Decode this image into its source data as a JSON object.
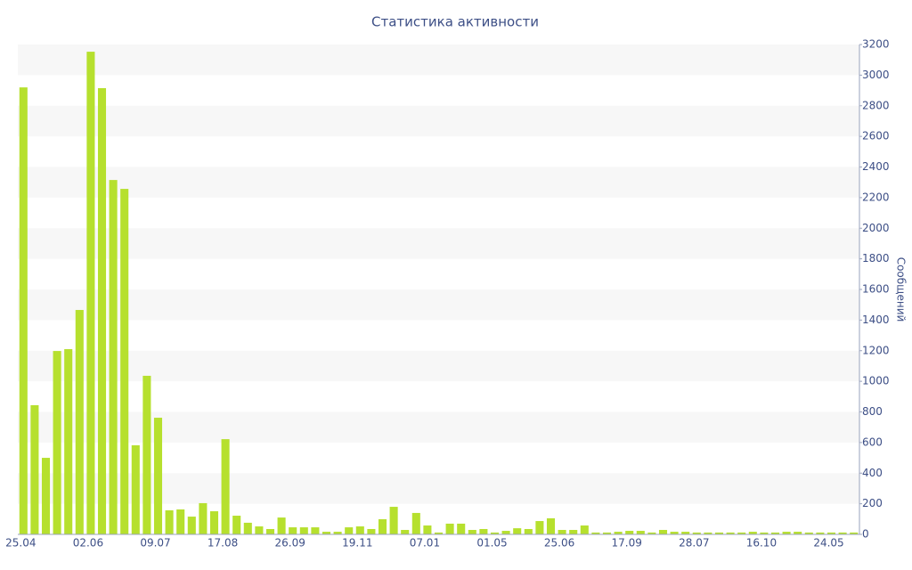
{
  "chart_data": {
    "type": "bar",
    "title": "Статистика активности",
    "y_label": "Сообщений",
    "categories": [
      "25.04",
      null,
      null,
      null,
      null,
      null,
      "02.06",
      null,
      null,
      null,
      null,
      null,
      "09.07",
      null,
      null,
      null,
      null,
      null,
      "17.08",
      null,
      null,
      null,
      null,
      null,
      "26.09",
      null,
      null,
      null,
      null,
      null,
      "19.11",
      null,
      null,
      null,
      null,
      null,
      "07.01",
      null,
      null,
      null,
      null,
      null,
      "01.05",
      null,
      null,
      null,
      null,
      null,
      "25.06",
      null,
      null,
      null,
      null,
      null,
      "17.09",
      null,
      null,
      null,
      null,
      null,
      "28.07",
      null,
      null,
      null,
      null,
      null,
      "16.10",
      null,
      null,
      null,
      null,
      null,
      "24.05",
      null,
      null
    ],
    "values": [
      2920,
      844,
      500,
      1198,
      1210,
      1466,
      3153,
      2915,
      2315,
      2257,
      582,
      1036,
      762,
      157,
      163,
      116,
      204,
      151,
      622,
      122,
      76,
      52,
      35,
      110,
      46,
      46,
      46,
      17,
      17,
      46,
      52,
      35,
      99,
      180,
      29,
      140,
      58,
      12,
      70,
      70,
      29,
      35,
      12,
      23,
      40,
      35,
      87,
      105,
      29,
      29,
      58,
      12,
      12,
      17,
      23,
      23,
      12,
      29,
      17,
      17,
      12,
      12,
      12,
      12,
      12,
      17,
      12,
      12,
      17,
      17,
      12,
      12,
      12,
      12,
      12
    ],
    "color": "#b6e02e",
    "ylim": [
      0,
      3200
    ],
    "yticks": [
      0,
      200,
      400,
      600,
      800,
      1000,
      1200,
      1400,
      1600,
      1800,
      2000,
      2200,
      2400,
      2600,
      2800,
      3000,
      3200
    ],
    "grid": true,
    "y_axis_side": "right"
  }
}
